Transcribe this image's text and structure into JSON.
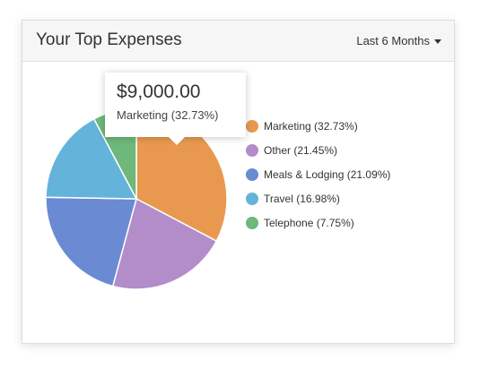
{
  "header": {
    "title": "Your Top Expenses",
    "range_label": "Last 6 Months"
  },
  "tooltip": {
    "value": "$9,000.00",
    "label": "Marketing (32.73%)"
  },
  "chart_data": {
    "type": "pie",
    "legend_position": "right",
    "slices": [
      {
        "name": "Marketing",
        "value": 32.73,
        "label": "Marketing (32.73%)",
        "color": "#e8994f"
      },
      {
        "name": "Other",
        "value": 21.45,
        "label": "Other (21.45%)",
        "color": "#b28dc9"
      },
      {
        "name": "Meals & Lodging",
        "value": 21.09,
        "label": "Meals & Lodging (21.09%)",
        "color": "#6a8bd3"
      },
      {
        "name": "Travel",
        "value": 16.98,
        "label": "Travel (16.98%)",
        "color": "#64b3da"
      },
      {
        "name": "Telephone",
        "value": 7.75,
        "label": "Telephone (7.75%)",
        "color": "#6db87a"
      }
    ]
  }
}
